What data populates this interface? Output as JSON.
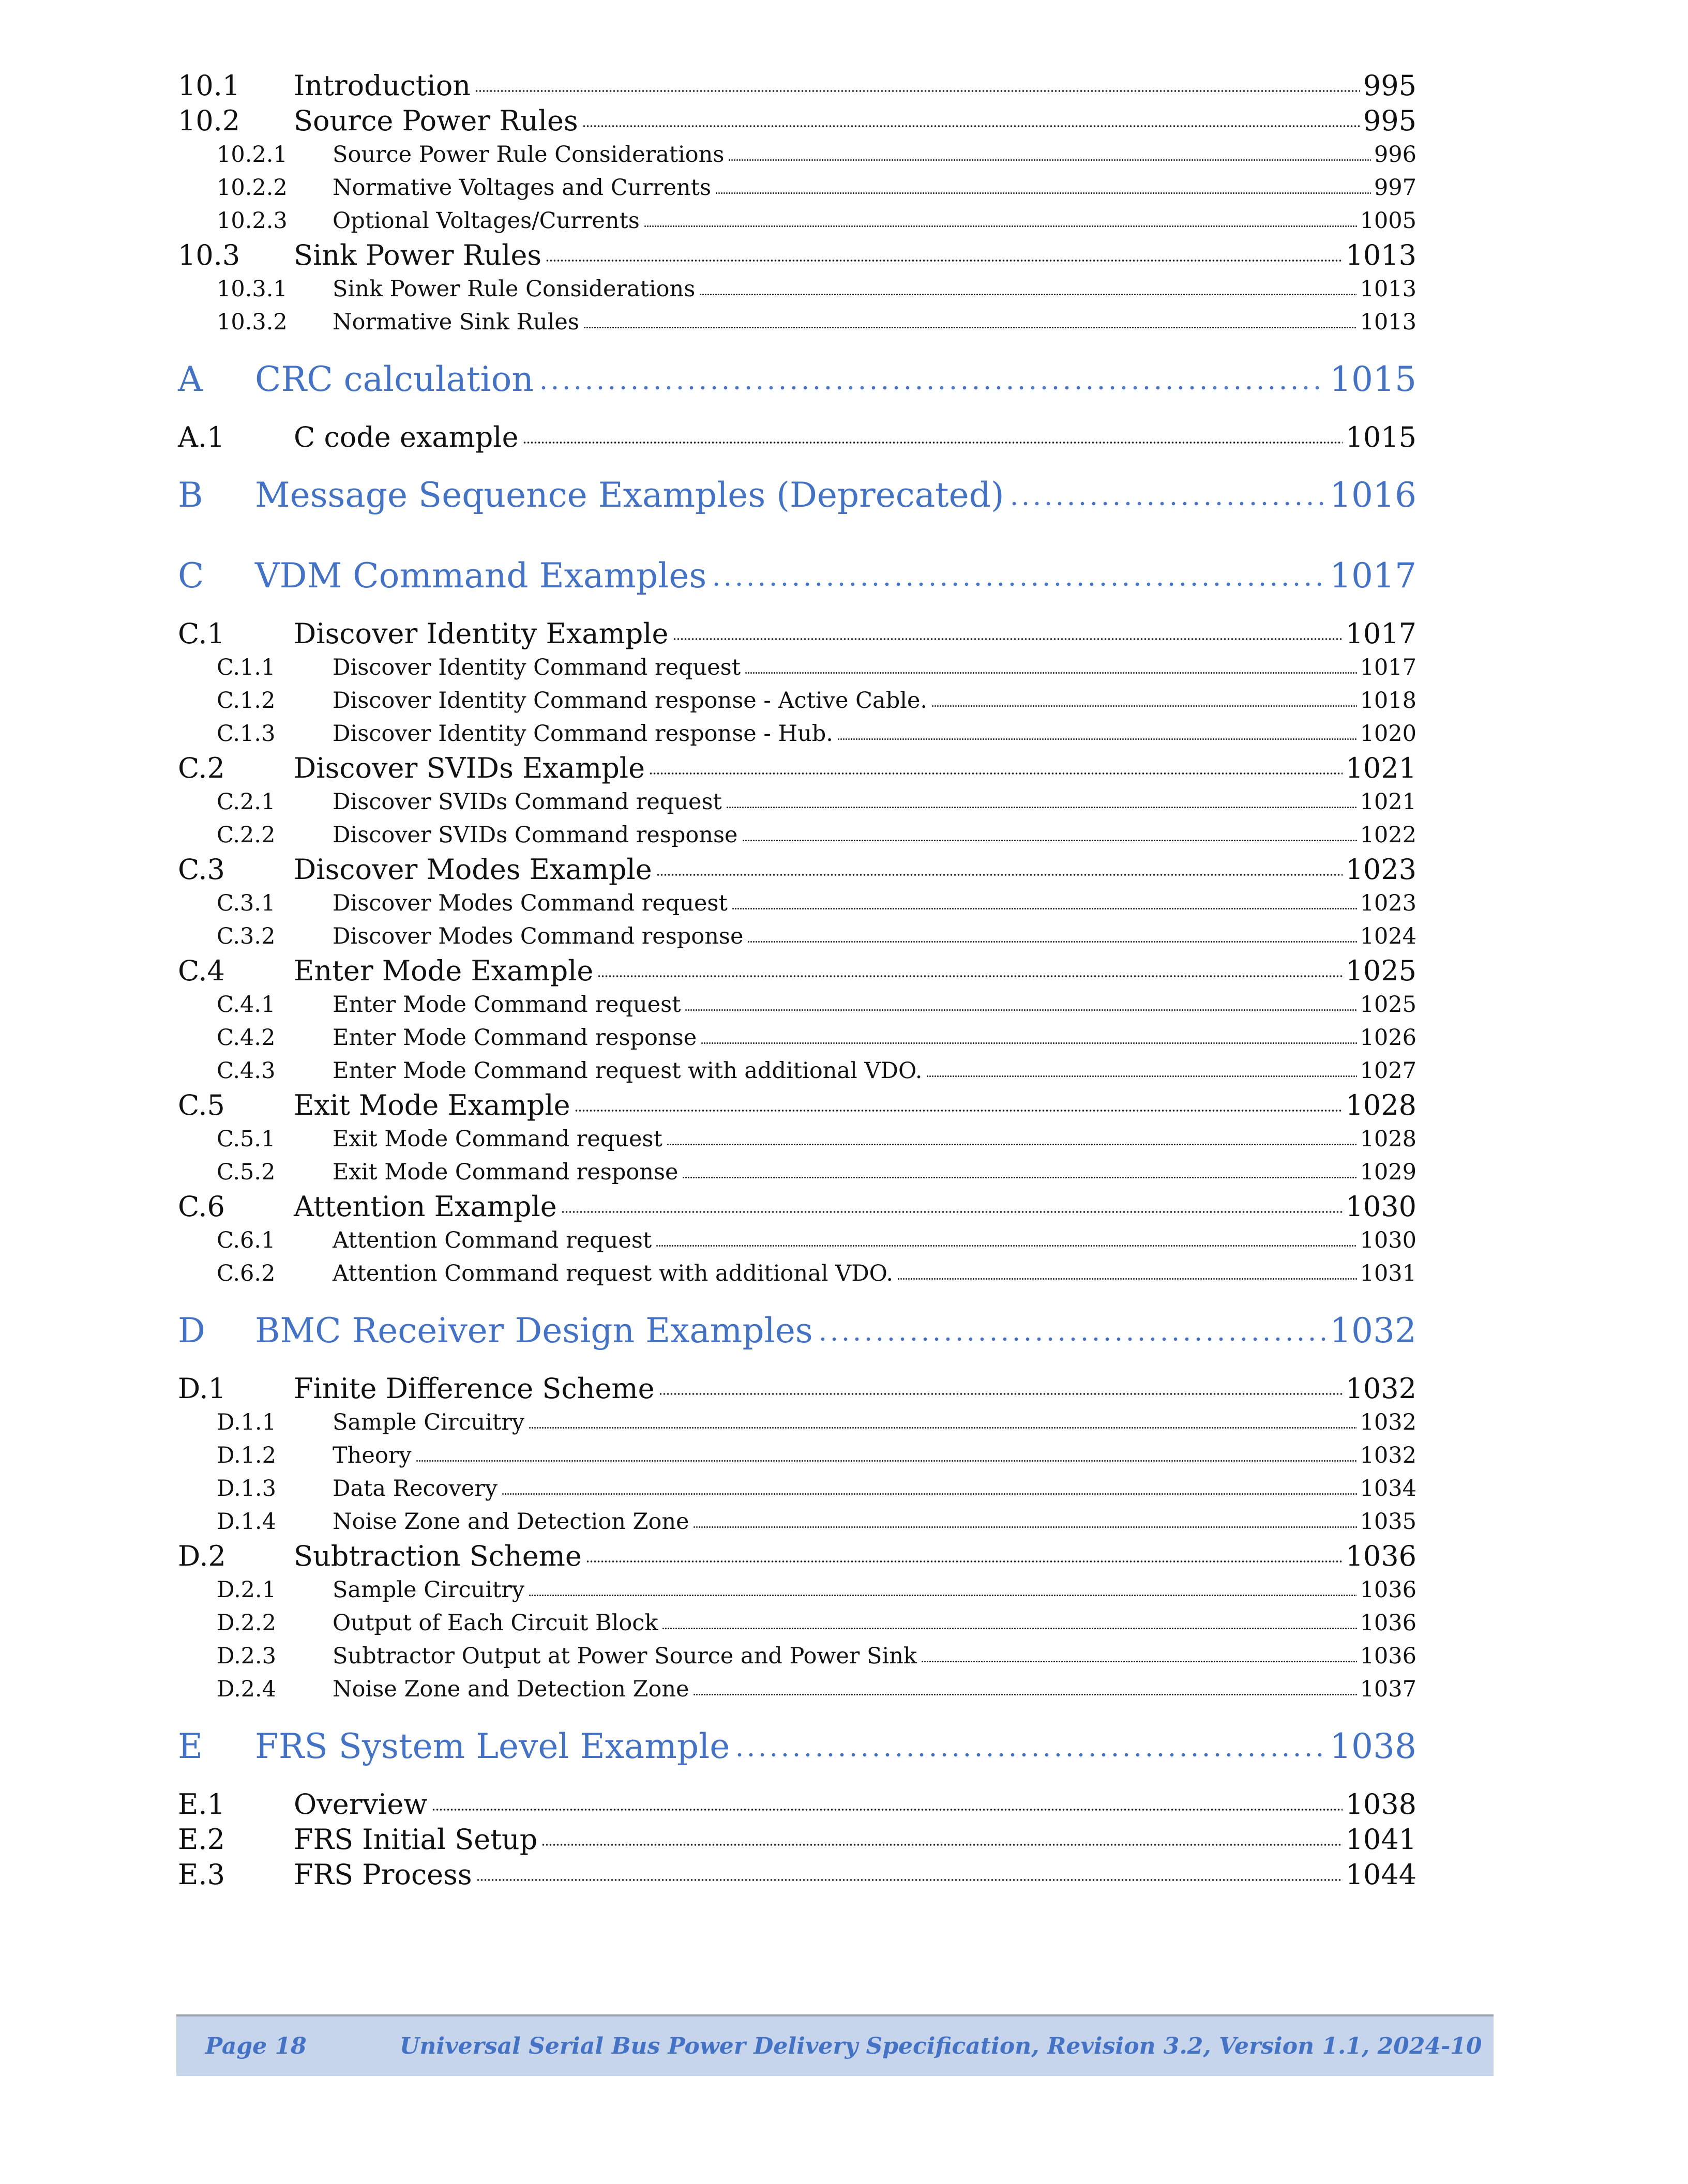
{
  "toc": [
    {
      "level": 2,
      "num": "10.1",
      "title": "Introduction",
      "page": "995"
    },
    {
      "level": 2,
      "num": "10.2",
      "title": "Source Power Rules",
      "page": "995"
    },
    {
      "level": 3,
      "num": "10.2.1",
      "title": "Source Power Rule Considerations",
      "page": "996"
    },
    {
      "level": 3,
      "num": "10.2.2",
      "title": "Normative Voltages and Currents",
      "page": "997"
    },
    {
      "level": 3,
      "num": "10.2.3",
      "title": "Optional Voltages/Currents",
      "page": "1005"
    },
    {
      "level": 2,
      "num": "10.3",
      "title": "Sink Power Rules",
      "page": "1013"
    },
    {
      "level": 3,
      "num": "10.3.1",
      "title": "Sink Power Rule Considerations",
      "page": "1013"
    },
    {
      "level": 3,
      "num": "10.3.2",
      "title": "Normative Sink Rules",
      "page": "1013"
    },
    {
      "level": 1,
      "num": "A",
      "title": "CRC calculation",
      "page": "1015"
    },
    {
      "level": 2,
      "num": "A.1",
      "title": "C code example",
      "page": "1015"
    },
    {
      "level": 1,
      "num": "B",
      "title": "Message Sequence Examples (Deprecated)",
      "page": "1016"
    },
    {
      "level": 1,
      "num": "C",
      "title": "VDM Command Examples",
      "page": "1017"
    },
    {
      "level": 2,
      "num": "C.1",
      "title": "Discover Identity Example",
      "page": "1017"
    },
    {
      "level": 3,
      "num": "C.1.1",
      "title": "Discover Identity Command request",
      "page": "1017"
    },
    {
      "level": 3,
      "num": "C.1.2",
      "title": "Discover Identity Command response - Active Cable.",
      "page": "1018"
    },
    {
      "level": 3,
      "num": "C.1.3",
      "title": "Discover Identity Command response - Hub.",
      "page": "1020"
    },
    {
      "level": 2,
      "num": "C.2",
      "title": "Discover SVIDs Example",
      "page": "1021"
    },
    {
      "level": 3,
      "num": "C.2.1",
      "title": "Discover SVIDs Command request",
      "page": "1021"
    },
    {
      "level": 3,
      "num": "C.2.2",
      "title": "Discover SVIDs Command response",
      "page": "1022"
    },
    {
      "level": 2,
      "num": "C.3",
      "title": "Discover Modes Example",
      "page": "1023"
    },
    {
      "level": 3,
      "num": "C.3.1",
      "title": "Discover Modes Command request",
      "page": "1023"
    },
    {
      "level": 3,
      "num": "C.3.2",
      "title": "Discover Modes Command response",
      "page": "1024"
    },
    {
      "level": 2,
      "num": "C.4",
      "title": "Enter Mode Example",
      "page": "1025"
    },
    {
      "level": 3,
      "num": "C.4.1",
      "title": "Enter Mode Command request",
      "page": "1025"
    },
    {
      "level": 3,
      "num": "C.4.2",
      "title": "Enter Mode Command response",
      "page": "1026"
    },
    {
      "level": 3,
      "num": "C.4.3",
      "title": "Enter Mode Command request with additional VDO.",
      "page": "1027"
    },
    {
      "level": 2,
      "num": "C.5",
      "title": "Exit Mode Example",
      "page": "1028"
    },
    {
      "level": 3,
      "num": "C.5.1",
      "title": "Exit Mode Command request",
      "page": "1028"
    },
    {
      "level": 3,
      "num": "C.5.2",
      "title": "Exit Mode Command response",
      "page": "1029"
    },
    {
      "level": 2,
      "num": "C.6",
      "title": "Attention Example",
      "page": "1030"
    },
    {
      "level": 3,
      "num": "C.6.1",
      "title": "Attention Command request",
      "page": "1030"
    },
    {
      "level": 3,
      "num": "C.6.2",
      "title": "Attention Command request with additional VDO.",
      "page": "1031"
    },
    {
      "level": 1,
      "num": "D",
      "title": "BMC Receiver Design Examples",
      "page": "1032"
    },
    {
      "level": 2,
      "num": "D.1",
      "title": "Finite Difference Scheme",
      "page": "1032"
    },
    {
      "level": 3,
      "num": "D.1.1",
      "title": "Sample Circuitry",
      "page": "1032"
    },
    {
      "level": 3,
      "num": "D.1.2",
      "title": "Theory",
      "page": "1032"
    },
    {
      "level": 3,
      "num": "D.1.3",
      "title": "Data Recovery",
      "page": "1034"
    },
    {
      "level": 3,
      "num": "D.1.4",
      "title": "Noise Zone and Detection Zone",
      "page": "1035"
    },
    {
      "level": 2,
      "num": "D.2",
      "title": "Subtraction Scheme",
      "page": "1036"
    },
    {
      "level": 3,
      "num": "D.2.1",
      "title": "Sample Circuitry",
      "page": "1036"
    },
    {
      "level": 3,
      "num": "D.2.2",
      "title": "Output of Each Circuit Block",
      "page": "1036"
    },
    {
      "level": 3,
      "num": "D.2.3",
      "title": "Subtractor Output at Power Source and Power Sink",
      "page": "1036"
    },
    {
      "level": 3,
      "num": "D.2.4",
      "title": "Noise Zone and Detection Zone",
      "page": "1037"
    },
    {
      "level": 1,
      "num": "E",
      "title": "FRS System Level Example",
      "page": "1038"
    },
    {
      "level": 2,
      "num": "E.1",
      "title": "Overview",
      "page": "1038"
    },
    {
      "level": 2,
      "num": "E.2",
      "title": "FRS Initial Setup",
      "page": "1041"
    },
    {
      "level": 2,
      "num": "E.3",
      "title": "FRS Process",
      "page": "1044"
    }
  ],
  "footer": {
    "page_label": "Page 18",
    "doc_title": "Universal Serial Bus Power Delivery Specification, Revision 3.2, Version 1.1, 2024-10"
  },
  "colors": {
    "heading_blue": "#4472c4",
    "footer_band": "#c6d5ec"
  }
}
